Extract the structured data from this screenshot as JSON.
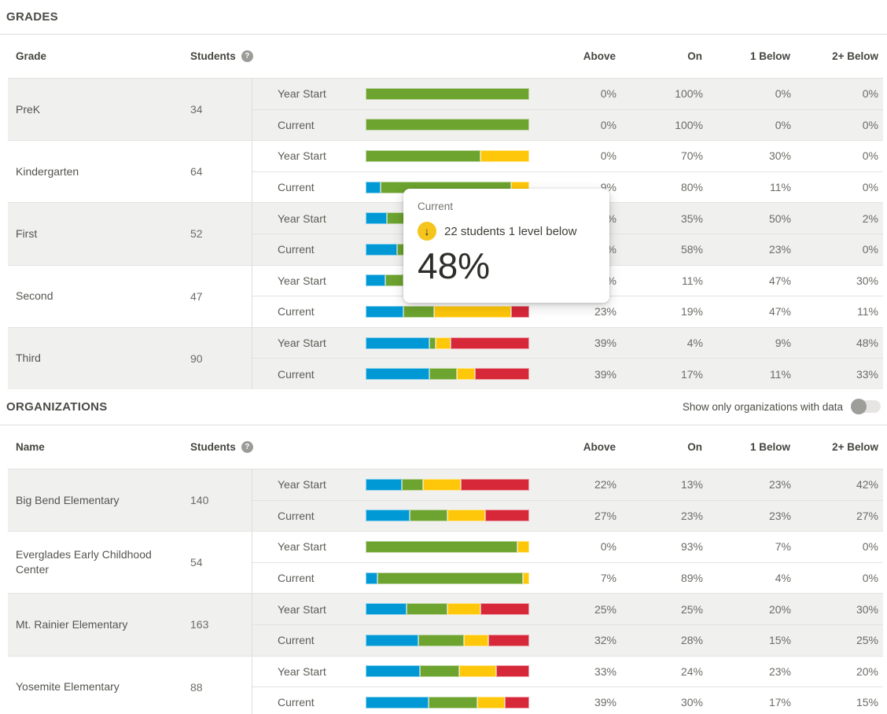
{
  "colors": {
    "above": "#0099d6",
    "on": "#6da32f",
    "one_below": "#fec70a",
    "two_below": "#d7283a",
    "stripe": "#f0f0ee",
    "toggle_knob": "#9d9d9a",
    "tooltip_icon_bg": "#f6c51d"
  },
  "tooltip": {
    "title": "Current",
    "text": "22 students 1 level below",
    "value": "48%"
  },
  "grades": {
    "title": "GRADES",
    "columns": {
      "name": "Grade",
      "students": "Students",
      "above": "Above",
      "on": "On",
      "one_below": "1 Below",
      "two_below": "2+ Below"
    },
    "row_labels": [
      "Year Start",
      "Current"
    ],
    "rows": [
      {
        "name": "PreK",
        "students": "34",
        "bars": [
          [
            0,
            100,
            0,
            0
          ],
          [
            0,
            100,
            0,
            0
          ]
        ]
      },
      {
        "name": "Kindergarten",
        "students": "64",
        "bars": [
          [
            0,
            70,
            30,
            0
          ],
          [
            9,
            80,
            11,
            0
          ]
        ]
      },
      {
        "name": "First",
        "students": "52",
        "bars": [
          [
            13,
            35,
            50,
            2
          ],
          [
            19,
            58,
            23,
            0
          ]
        ]
      },
      {
        "name": "Second",
        "students": "47",
        "bars": [
          [
            12,
            11,
            47,
            30
          ],
          [
            23,
            19,
            47,
            11
          ]
        ]
      },
      {
        "name": "Third",
        "students": "90",
        "bars": [
          [
            39,
            4,
            9,
            48
          ],
          [
            39,
            17,
            11,
            33
          ]
        ]
      }
    ]
  },
  "organizations": {
    "title": "ORGANIZATIONS",
    "toggle_label": "Show only organizations with data",
    "columns": {
      "name": "Name",
      "students": "Students",
      "above": "Above",
      "on": "On",
      "one_below": "1 Below",
      "two_below": "2+ Below"
    },
    "row_labels": [
      "Year Start",
      "Current"
    ],
    "rows": [
      {
        "name": "Big Bend Elementary",
        "students": "140",
        "bars": [
          [
            22,
            13,
            23,
            42
          ],
          [
            27,
            23,
            23,
            27
          ]
        ]
      },
      {
        "name": "Everglades Early Childhood Center",
        "students": "54",
        "bars": [
          [
            0,
            93,
            7,
            0
          ],
          [
            7,
            89,
            4,
            0
          ]
        ]
      },
      {
        "name": "Mt. Rainier Elementary",
        "students": "163",
        "bars": [
          [
            25,
            25,
            20,
            30
          ],
          [
            32,
            28,
            15,
            25
          ]
        ]
      },
      {
        "name": "Yosemite Elementary",
        "students": "88",
        "bars": [
          [
            33,
            24,
            23,
            20
          ],
          [
            39,
            30,
            17,
            15
          ]
        ]
      }
    ]
  }
}
